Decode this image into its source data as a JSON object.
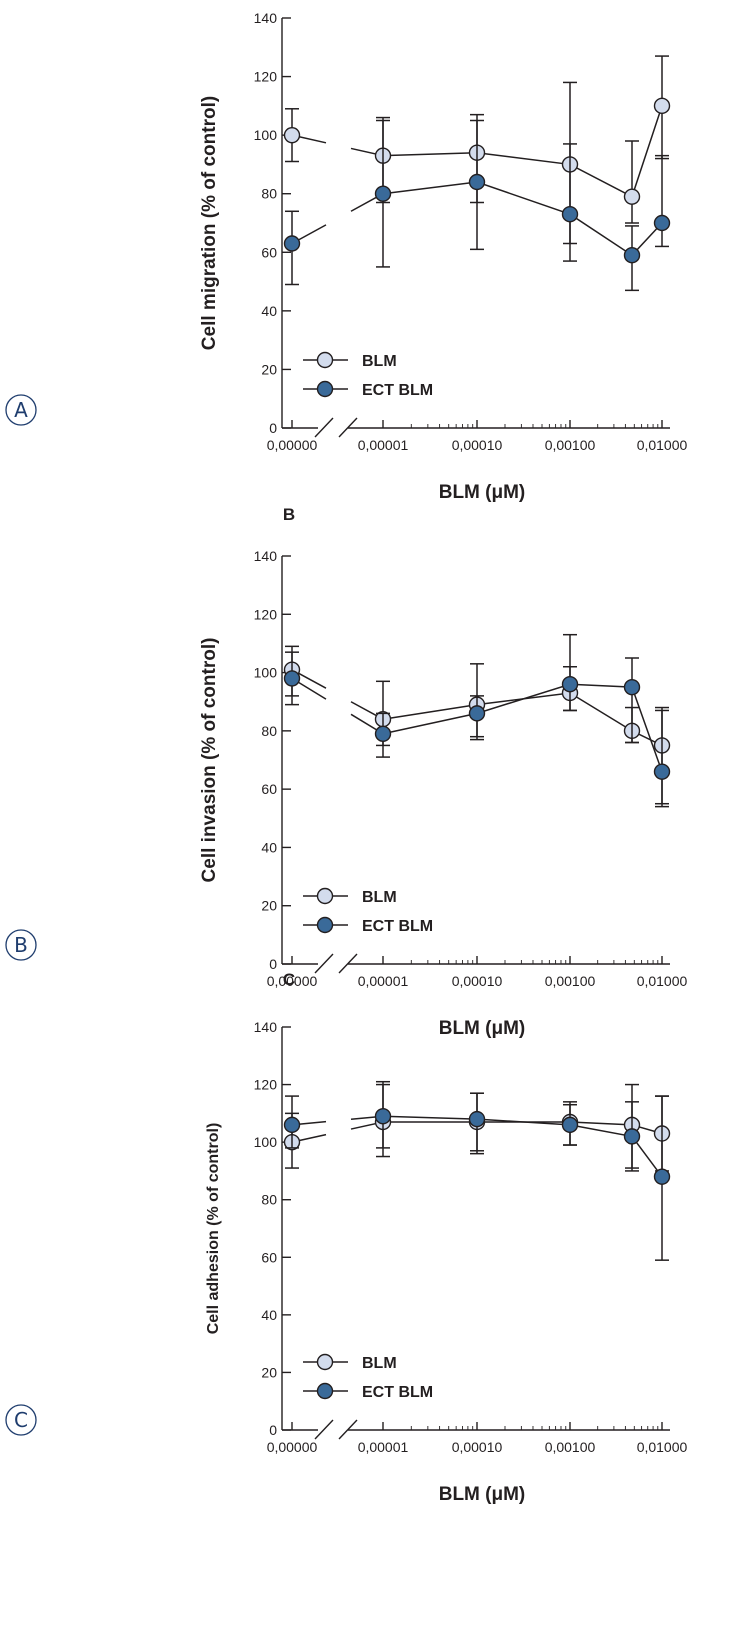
{
  "colors": {
    "axis": "#231f20",
    "blm_fill": "#d3dced",
    "ect_fill": "#3a6a99",
    "marker_stroke": "#231f20",
    "panel_tag": "#1f3d6e"
  },
  "chart_data": [
    {
      "type": "line",
      "panel_tag": "A",
      "panel_letter": "",
      "xlabel": "BLM (μM)",
      "ylabel": "Cell migration (% of control)",
      "ylim": [
        0,
        140
      ],
      "y_ticks": [
        "0",
        "20",
        "40",
        "60",
        "80",
        "100",
        "120",
        "140"
      ],
      "x": [
        "0,00000",
        "0,00001",
        "0,00010",
        "0,00100",
        "0,00500",
        "0,01000"
      ],
      "x_tick_labels": [
        "0,00000",
        "0,00001",
        "0,00010",
        "0,00100",
        "0,01000"
      ],
      "x_scale": "log with axis break after 0",
      "legend": [
        "BLM",
        "ECT BLM"
      ],
      "legend_position": "bottom-left",
      "grid": false,
      "series": [
        {
          "name": "BLM",
          "marker": "light",
          "values": [
            100,
            93,
            94,
            90,
            79,
            110
          ],
          "err_low": [
            91,
            77,
            77,
            63,
            70,
            92
          ],
          "err_high": [
            109,
            106,
            107,
            118,
            98,
            127
          ]
        },
        {
          "name": "ECT BLM",
          "marker": "dark",
          "values": [
            63,
            80,
            84,
            73,
            59,
            70
          ],
          "err_low": [
            49,
            55,
            61,
            57,
            47,
            62
          ],
          "err_high": [
            74,
            105,
            105,
            97,
            69,
            93
          ]
        }
      ]
    },
    {
      "type": "line",
      "panel_tag": "B",
      "panel_letter": "B",
      "xlabel": "BLM (μM)",
      "ylabel": "Cell invasion (% of control)",
      "ylim": [
        0,
        140
      ],
      "y_ticks": [
        "0",
        "20",
        "40",
        "60",
        "80",
        "100",
        "120",
        "140"
      ],
      "x": [
        "0,00000",
        "0,00001",
        "0,00010",
        "0,00100",
        "0,00500",
        "0,01000"
      ],
      "x_tick_labels": [
        "0,00000",
        "0,00001",
        "0,00010",
        "0,00100",
        "0,01000"
      ],
      "x_scale": "log with axis break after 0",
      "legend": [
        "BLM",
        "ECT BLM"
      ],
      "legend_position": "bottom-left",
      "grid": false,
      "series": [
        {
          "name": "BLM",
          "marker": "light",
          "values": [
            101,
            84,
            89,
            93,
            80,
            75
          ],
          "err_low": [
            92,
            75,
            78,
            87,
            76,
            55
          ],
          "err_high": [
            109,
            97,
            103,
            102,
            88,
            88
          ]
        },
        {
          "name": "ECT BLM",
          "marker": "dark",
          "values": [
            98,
            79,
            86,
            96,
            95,
            66
          ],
          "err_low": [
            89,
            71,
            77,
            87,
            76,
            54
          ],
          "err_high": [
            107,
            86,
            92,
            113,
            105,
            87
          ]
        }
      ]
    },
    {
      "type": "line",
      "panel_tag": "C",
      "panel_letter": "C",
      "xlabel": "BLM (μM)",
      "ylabel": "Cell adhesion (% of control)",
      "ylim": [
        0,
        140
      ],
      "y_ticks": [
        "0",
        "20",
        "40",
        "60",
        "80",
        "100",
        "120",
        "140"
      ],
      "x": [
        "0,00000",
        "0,00001",
        "0,00010",
        "0,00100",
        "0,00500",
        "0,01000"
      ],
      "x_tick_labels": [
        "0,00000",
        "0,00001",
        "0,00010",
        "0,00100",
        "0,01000"
      ],
      "x_scale": "log with axis break after 0",
      "legend": [
        "BLM",
        "ECT BLM"
      ],
      "legend_position": "bottom-left",
      "grid": false,
      "series": [
        {
          "name": "BLM",
          "marker": "light",
          "values": [
            100,
            107,
            107,
            107,
            106,
            103
          ],
          "err_low": [
            91,
            95,
            97,
            99,
            91,
            90
          ],
          "err_high": [
            110,
            120,
            117,
            114,
            120,
            116
          ]
        },
        {
          "name": "ECT BLM",
          "marker": "dark",
          "values": [
            106,
            109,
            108,
            106,
            102,
            88
          ],
          "err_low": [
            98,
            98,
            96,
            99,
            90,
            59
          ],
          "err_high": [
            116,
            121,
            117,
            113,
            114,
            116
          ]
        }
      ]
    }
  ]
}
